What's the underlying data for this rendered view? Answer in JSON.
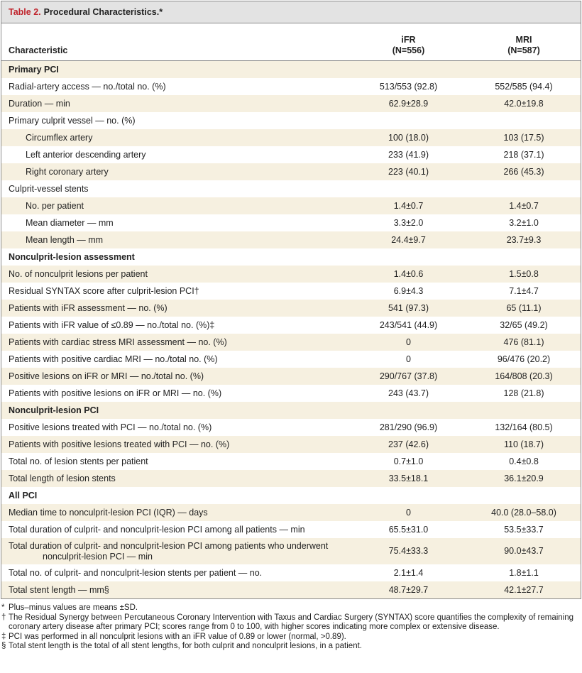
{
  "title": {
    "number": "Table 2.",
    "text": "Procedural Characteristics.*"
  },
  "header": {
    "characteristic": "Characteristic",
    "groups": [
      {
        "name": "iFR",
        "n": "(N=556)"
      },
      {
        "name": "MRI",
        "n": "(N=587)"
      }
    ]
  },
  "sections": [
    {
      "title": "Primary PCI",
      "rows": [
        {
          "label": "Radial-artery access — no./total no. (%)",
          "values": [
            "513/553 (92.8)",
            "552/585 (94.4)"
          ]
        },
        {
          "label": "Duration — min",
          "values": [
            "62.9±28.9",
            "42.0±19.8"
          ]
        },
        {
          "label": "Primary culprit vessel — no. (%)",
          "subrows": [
            {
              "label": "Circumflex artery",
              "values": [
                "100 (18.0)",
                "103 (17.5)"
              ]
            },
            {
              "label": "Left anterior descending artery",
              "values": [
                "233 (41.9)",
                "218 (37.1)"
              ]
            },
            {
              "label": "Right coronary artery",
              "values": [
                "223 (40.1)",
                "266 (45.3)"
              ]
            }
          ]
        },
        {
          "label": "Culprit-vessel stents",
          "subrows": [
            {
              "label": "No. per patient",
              "values": [
                "1.4±0.7",
                "1.4±0.7"
              ]
            },
            {
              "label": "Mean diameter — mm",
              "values": [
                "3.3±2.0",
                "3.2±1.0"
              ]
            },
            {
              "label": "Mean length — mm",
              "values": [
                "24.4±9.7",
                "23.7±9.3"
              ]
            }
          ]
        }
      ]
    },
    {
      "title": "Nonculprit-lesion assessment",
      "rows": [
        {
          "label": "No. of nonculprit lesions per patient",
          "values": [
            "1.4±0.6",
            "1.5±0.8"
          ]
        },
        {
          "label": "Residual SYNTAX score after culprit-lesion PCI†",
          "values": [
            "6.9±4.3",
            "7.1±4.7"
          ]
        },
        {
          "label": "Patients with iFR assessment — no. (%)",
          "values": [
            "541 (97.3)",
            "65 (11.1)"
          ]
        },
        {
          "label": "Patients with iFR value of ≤0.89 — no./total no. (%)‡",
          "values": [
            "243/541 (44.9)",
            "32/65 (49.2)"
          ]
        },
        {
          "label": "Patients with cardiac stress MRI assessment — no. (%)",
          "values": [
            "0",
            "476 (81.1)"
          ]
        },
        {
          "label": "Patients with positive cardiac MRI — no./total no. (%)",
          "values": [
            "0",
            "96/476 (20.2)"
          ]
        },
        {
          "label": "Positive lesions on iFR or MRI — no./total no. (%)",
          "values": [
            "290/767 (37.8)",
            "164/808 (20.3)"
          ]
        },
        {
          "label": "Patients with positive lesions on iFR or MRI — no. (%)",
          "values": [
            "243 (43.7)",
            "128 (21.8)"
          ]
        }
      ]
    },
    {
      "title": "Nonculprit-lesion PCI",
      "rows": [
        {
          "label": "Positive lesions treated with PCI — no./total no. (%)",
          "values": [
            "281/290 (96.9)",
            "132/164 (80.5)"
          ]
        },
        {
          "label": "Patients with positive lesions treated with PCI — no. (%)",
          "values": [
            "237 (42.6)",
            "110 (18.7)"
          ]
        },
        {
          "label": "Total no. of lesion stents per patient",
          "values": [
            "0.7±1.0",
            "0.4±0.8"
          ]
        },
        {
          "label": "Total length of lesion stents",
          "values": [
            "33.5±18.1",
            "36.1±20.9"
          ]
        }
      ]
    },
    {
      "title": "All PCI",
      "rows": [
        {
          "label": "Median time to nonculprit-lesion PCI (IQR) — days",
          "values": [
            "0",
            "40.0 (28.0–58.0)"
          ]
        },
        {
          "label": "Total duration of culprit- and nonculprit-lesion PCI among all patients — min",
          "values": [
            "65.5±31.0",
            "53.5±33.7"
          ]
        },
        {
          "label": "Total duration of culprit- and nonculprit-lesion PCI among patients who underwent nonculprit-lesion PCI — min",
          "values": [
            "75.4±33.3",
            "90.0±43.7"
          ]
        },
        {
          "label": "Total no. of culprit- and nonculprit-lesion stents per patient — no.",
          "values": [
            "2.1±1.4",
            "1.8±1.1"
          ]
        },
        {
          "label": "Total stent length — mm§",
          "values": [
            "48.7±29.7",
            "42.1±27.7"
          ]
        }
      ]
    }
  ],
  "footnotes": [
    {
      "symbol": "*",
      "text": "Plus–minus values are means ±SD."
    },
    {
      "symbol": "†",
      "text": "The Residual Synergy between Percutaneous Coronary Intervention with Taxus and Cardiac Surgery (SYNTAX) score quantifies the complexity of remaining coronary artery disease after primary PCI; scores range from 0 to 100, with higher scores indicating more complex or extensive disease."
    },
    {
      "symbol": "‡",
      "text": "PCI was performed in all nonculprit lesions with an iFR value of 0.89 or lower (normal, >0.89)."
    },
    {
      "symbol": "§",
      "text": "Total stent length is the total of all stent lengths, for both culprit and nonculprit lesions, in a patient."
    }
  ]
}
